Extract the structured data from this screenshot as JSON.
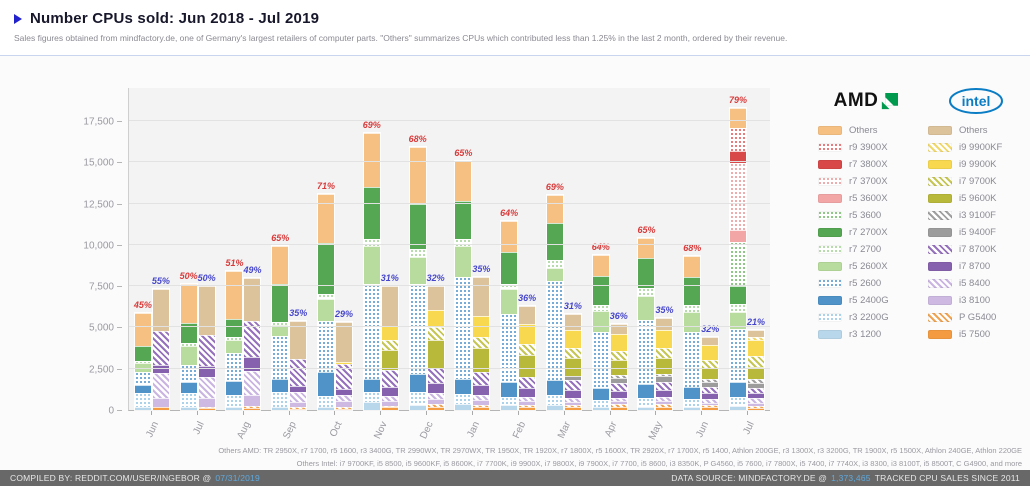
{
  "header": {
    "title": "Number CPUs sold: Jun 2018 - Jul 2019",
    "subtitle": "Sales figures obtained from mindfactory.de, one of Germany's largest retailers of computer parts. \"Others\" summarizes CPUs which contributed less than 1.25% in the last 2 month, ordered by their revenue."
  },
  "legend": {
    "amd_label": "AMD",
    "intel_label": "intel"
  },
  "notes": {
    "amd_others": "Others AMD: TR 2950X, r7 1700, r5 1600, r3 3400G, TR 2990WX, TR 2970WX, TR 1950X, TR 1920X, r7 1800X, r5 1600X, TR 2920X, r7 1700X, r5 1400, Athlon 200GE, r3 1300X, r3 3200G, TR 1900X, r5 1500X, Athlon 240GE, Athlon 220GE",
    "intel_others": "Others Intel: i7 9700KF, i5 8500, i5 9600KF, i5 8600K, i7 7700K, i9 9900X, i7 9800X, i9 7900X, i7 7700, i5 8600, i3 8350K, P G4560, i5 7600, i7 7800X, i5 7400, i7 7740X, i3 8300, i3 8100T, i5 8500T, C G4900, and more"
  },
  "footer": {
    "compiled_by": "COMPILED BY: REDDIT.COM/USER/INGEBOR @",
    "compiled_date": "07/31/2019",
    "source_prefix": "DATA SOURCE: MINDFACTORY.DE @",
    "source_count": "1,373,465",
    "source_suffix": "TRACKED CPU SALES SINCE 2011"
  },
  "colors": {
    "accent_blue": "#2222cc",
    "amd_pct_red": "#d93a3a",
    "intel_pct_blue": "#4646cc",
    "footer_bg": "#686868",
    "footer_link": "#5fa9dd",
    "amd_logo_green": "#009a4e",
    "intel_logo_blue": "#0a7dc4"
  },
  "chart_data": {
    "type": "bar",
    "stacked": true,
    "title": "Number CPUs sold: Jun 2018 - Jul 2019",
    "xlabel": "",
    "ylabel": "",
    "ylim": [
      0,
      19550
    ],
    "grid": true,
    "legend_position": "right",
    "months": [
      "Jun",
      "Jul",
      "Aug",
      "Sep",
      "Oct",
      "Nov",
      "Dec",
      "Jan",
      "Feb",
      "Mar",
      "Apr",
      "May",
      "Jun",
      "Jul"
    ],
    "y_ticks": [
      "0",
      "2,500",
      "5,000",
      "7,500",
      "10,000",
      "12,500",
      "15,000",
      "17,500"
    ],
    "amd_share_pct": [
      "45%",
      "50%",
      "51%",
      "65%",
      "71%",
      "69%",
      "68%",
      "65%",
      "64%",
      "69%",
      "64%",
      "65%",
      "68%",
      "79%"
    ],
    "intel_share_pct": [
      "55%",
      "50%",
      "49%",
      "35%",
      "29%",
      "31%",
      "32%",
      "35%",
      "36%",
      "31%",
      "36%",
      "35%",
      "32%",
      "21%"
    ],
    "amd_series": [
      {
        "name": "r3 1200",
        "color": "#b9d7ea",
        "pattern": "solid",
        "values": [
          150,
          150,
          150,
          150,
          150,
          500,
          300,
          350,
          300,
          300,
          150,
          200,
          200,
          250
        ]
      },
      {
        "name": "r3 2200G",
        "color": "#8fc3e4",
        "pattern": "dots",
        "values": [
          850,
          900,
          750,
          950,
          700,
          600,
          800,
          600,
          500,
          600,
          450,
          500,
          450,
          550
        ]
      },
      {
        "name": "r5 2400G",
        "color": "#4f93c8",
        "pattern": "solid",
        "values": [
          500,
          650,
          850,
          800,
          1450,
          800,
          1100,
          910,
          900,
          910,
          700,
          850,
          750,
          900
        ]
      },
      {
        "name": "r5 2600",
        "color": "#4a90c8",
        "pattern": "dots",
        "values": [
          800,
          1000,
          1700,
          2550,
          3100,
          5700,
          5400,
          6200,
          4100,
          5980,
          3400,
          3900,
          3300,
          3200
        ]
      },
      {
        "name": "r5 2600X",
        "color": "#b8dc9e",
        "pattern": "solid",
        "values": [
          550,
          1200,
          800,
          700,
          1350,
          2350,
          1650,
          1880,
          1500,
          780,
          1300,
          1450,
          1250,
          1050
        ]
      },
      {
        "name": "r7 2700",
        "color": "#9fd08f",
        "pattern": "dots",
        "values": [
          100,
          150,
          200,
          150,
          300,
          400,
          480,
          420,
          350,
          490,
          350,
          500,
          400,
          480
        ]
      },
      {
        "name": "r7 2700X",
        "color": "#55a753",
        "pattern": "solid",
        "values": [
          900,
          1200,
          1050,
          2300,
          3050,
          3150,
          2770,
          2310,
          1900,
          2240,
          1750,
          1800,
          1700,
          1100
        ]
      },
      {
        "name": "r5 3600",
        "color": "#6ab55e",
        "pattern": "dots",
        "values": [
          0,
          0,
          0,
          0,
          0,
          0,
          0,
          0,
          0,
          0,
          0,
          0,
          0,
          2670
        ]
      },
      {
        "name": "r5 3600X",
        "color": "#f2a6a6",
        "pattern": "solid",
        "values": [
          0,
          0,
          0,
          0,
          0,
          0,
          0,
          0,
          0,
          0,
          0,
          0,
          0,
          670
        ]
      },
      {
        "name": "r7 3700X",
        "color": "#e89090",
        "pattern": "dots",
        "values": [
          0,
          0,
          0,
          0,
          0,
          0,
          0,
          0,
          0,
          0,
          0,
          0,
          0,
          4100
        ]
      },
      {
        "name": "r7 3800X",
        "color": "#d94848",
        "pattern": "solid",
        "values": [
          0,
          0,
          0,
          0,
          0,
          0,
          0,
          0,
          0,
          0,
          0,
          0,
          0,
          730
        ]
      },
      {
        "name": "r9 3900X",
        "color": "#e05050",
        "pattern": "dots",
        "values": [
          0,
          0,
          0,
          0,
          0,
          0,
          0,
          0,
          0,
          0,
          0,
          0,
          0,
          1390
        ]
      },
      {
        "name": "Others",
        "color": "#f6c083",
        "pattern": "solid",
        "values": [
          2050,
          2400,
          2900,
          2350,
          3000,
          3300,
          3400,
          2430,
          1900,
          1700,
          1300,
          1200,
          1250,
          1210
        ]
      }
    ],
    "intel_series": [
      {
        "name": "i5 7500",
        "color": "#f49b42",
        "pattern": "solid",
        "values": [
          150,
          120,
          120,
          80,
          80,
          150,
          200,
          150,
          150,
          150,
          200,
          200,
          150,
          100
        ]
      },
      {
        "name": "P G5400",
        "color": "#f0a452",
        "pattern": "hatch",
        "values": [
          50,
          80,
          130,
          120,
          100,
          120,
          150,
          150,
          150,
          150,
          150,
          150,
          150,
          150
        ]
      },
      {
        "name": "i3 8100",
        "color": "#cdb9e2",
        "pattern": "solid",
        "values": [
          550,
          500,
          650,
          300,
          350,
          300,
          300,
          300,
          250,
          200,
          200,
          200,
          150,
          150
        ]
      },
      {
        "name": "i5 8400",
        "color": "#cab4e2",
        "pattern": "hatch",
        "values": [
          1500,
          1300,
          1450,
          600,
          350,
          300,
          400,
          300,
          250,
          250,
          200,
          250,
          200,
          300
        ]
      },
      {
        "name": "i7 8700",
        "color": "#8661ad",
        "pattern": "solid",
        "values": [
          450,
          650,
          850,
          380,
          420,
          550,
          610,
          600,
          550,
          450,
          400,
          400,
          350,
          350
        ]
      },
      {
        "name": "i7 8700K",
        "color": "#9671bd",
        "pattern": "hatch",
        "values": [
          2100,
          1900,
          2200,
          1620,
          1500,
          1000,
          900,
          800,
          650,
          600,
          500,
          500,
          400,
          300
        ]
      },
      {
        "name": "i5 9400F",
        "color": "#9c9c9c",
        "pattern": "solid",
        "values": [
          0,
          0,
          0,
          0,
          0,
          0,
          0,
          0,
          0,
          250,
          300,
          350,
          300,
          300
        ]
      },
      {
        "name": "i3 9100F",
        "color": "#a0a0a0",
        "pattern": "hatch",
        "values": [
          0,
          0,
          0,
          0,
          0,
          0,
          0,
          0,
          0,
          0,
          150,
          150,
          150,
          200
        ]
      },
      {
        "name": "i5 9600K",
        "color": "#b8b83b",
        "pattern": "solid",
        "values": [
          0,
          0,
          0,
          0,
          0,
          1200,
          1700,
          1450,
          1350,
          1100,
          900,
          950,
          700,
          750
        ]
      },
      {
        "name": "i7 9700K",
        "color": "#c6c654",
        "pattern": "hatch",
        "values": [
          0,
          0,
          0,
          0,
          0,
          600,
          790,
          700,
          650,
          600,
          550,
          600,
          500,
          650
        ]
      },
      {
        "name": "i9 9900K",
        "color": "#f7d84e",
        "pattern": "solid",
        "values": [
          0,
          0,
          0,
          0,
          130,
          840,
          1030,
          1250,
          1200,
          1100,
          1050,
          1100,
          900,
          1000
        ]
      },
      {
        "name": "i9 9900KF",
        "color": "#f0d96a",
        "pattern": "hatch",
        "values": [
          0,
          0,
          0,
          0,
          0,
          0,
          0,
          0,
          0,
          0,
          0,
          0,
          0,
          150
        ]
      },
      {
        "name": "Others",
        "color": "#ddc39c",
        "pattern": "solid",
        "values": [
          2550,
          2950,
          2600,
          2300,
          2400,
          2440,
          1420,
          2350,
          1100,
          950,
          600,
          700,
          450,
          450
        ]
      }
    ]
  }
}
